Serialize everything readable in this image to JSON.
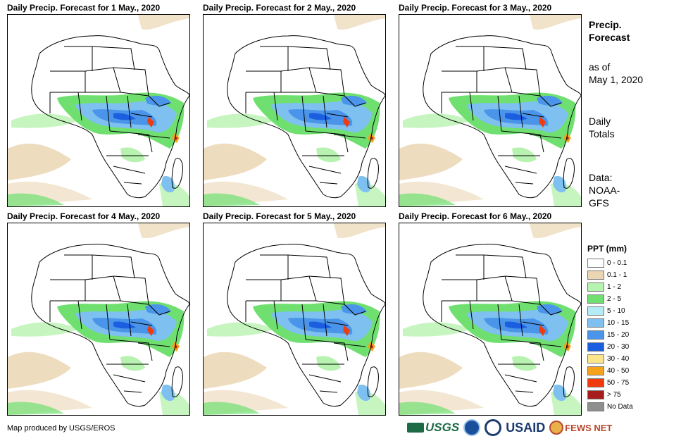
{
  "panels": [
    {
      "title": "Daily Precip. Forecast for 1 May., 2020"
    },
    {
      "title": "Daily Precip. Forecast for 2 May., 2020"
    },
    {
      "title": "Daily Precip. Forecast for 3 May., 2020"
    },
    {
      "title": "Daily Precip. Forecast for 4 May., 2020"
    },
    {
      "title": "Daily Precip. Forecast for 5 May., 2020"
    },
    {
      "title": "Daily Precip. Forecast for 6 May., 2020"
    }
  ],
  "side": {
    "title_line1": "Precip.",
    "title_line2": "Forecast",
    "asof_line1": "as of",
    "asof_line2": "May 1, 2020",
    "daily_line1": "Daily",
    "daily_line2": "Totals",
    "data_line1": "Data:",
    "data_line2": "NOAA-",
    "data_line3": "GFS"
  },
  "legend": {
    "title": "PPT (mm)",
    "items": [
      {
        "label": "0 - 0.1",
        "color": "#ffffff"
      },
      {
        "label": "0.1 - 1",
        "color": "#ebd6b4"
      },
      {
        "label": "1 - 2",
        "color": "#b8f2b0"
      },
      {
        "label": "2 - 5",
        "color": "#6fe070"
      },
      {
        "label": "5 - 10",
        "color": "#b4ecf5"
      },
      {
        "label": "10 - 15",
        "color": "#7ec1f0"
      },
      {
        "label": "15 - 20",
        "color": "#4a94ea"
      },
      {
        "label": "20 - 30",
        "color": "#1b5fe0"
      },
      {
        "label": "30 - 40",
        "color": "#fbe58a"
      },
      {
        "label": "40 - 50",
        "color": "#f7a21b"
      },
      {
        "label": "50 - 75",
        "color": "#f03c0c"
      },
      {
        "label": "> 75",
        "color": "#a51d1d"
      },
      {
        "label": "No Data",
        "color": "#8f8f8f"
      }
    ]
  },
  "footer": {
    "credit": "Map produced by USGS/EROS",
    "logo_usgs": "USGS",
    "logo_usaid": "USAID",
    "logo_fews": "FEWS NET"
  }
}
